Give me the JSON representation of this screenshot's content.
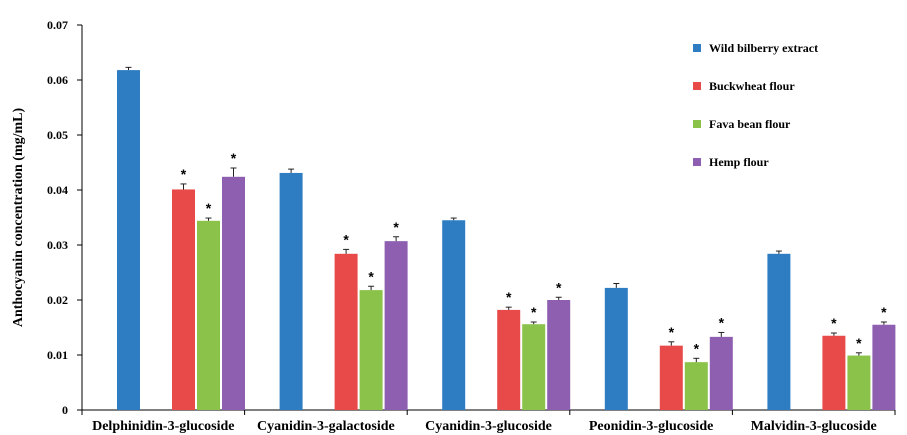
{
  "chart_data": {
    "type": "bar",
    "ylabel": "Anthocyanin concentration (mg/mL)",
    "ylim": [
      0,
      0.07
    ],
    "yticks": [
      "0",
      "0.01",
      "0.02",
      "0.03",
      "0.04",
      "0.05",
      "0.06",
      "0.07"
    ],
    "grid": false,
    "legend_position": "top-right",
    "categories": [
      "Delphinidin-3-glucoside",
      "Cyanidin-3-galactoside",
      "Cyanidin-3-glucoside",
      "Peonidin-3-glucoside",
      "Malvidin-3-glucoside"
    ],
    "significance_marker": "*",
    "series": [
      {
        "name": "Wild bilberry extract",
        "color": "#2e7dc2",
        "values": [
          0.0618,
          0.0431,
          0.0345,
          0.0222,
          0.0284
        ],
        "errors": [
          0.0005,
          0.0007,
          0.0004,
          0.0008,
          0.0005
        ],
        "significant": [
          false,
          false,
          false,
          false,
          false
        ]
      },
      {
        "name": "Buckwheat flour",
        "color": "#e84a4a",
        "values": [
          0.0401,
          0.0284,
          0.0182,
          0.0117,
          0.0135
        ],
        "errors": [
          0.001,
          0.0008,
          0.0005,
          0.0007,
          0.0005
        ],
        "significant": [
          true,
          true,
          true,
          true,
          true
        ]
      },
      {
        "name": "Fava bean flour",
        "color": "#8bc34a",
        "values": [
          0.0344,
          0.0218,
          0.0156,
          0.0087,
          0.0099
        ],
        "errors": [
          0.0005,
          0.0007,
          0.0004,
          0.0007,
          0.0005
        ],
        "significant": [
          true,
          true,
          true,
          true,
          true
        ]
      },
      {
        "name": "Hemp flour",
        "color": "#8e5fb0",
        "values": [
          0.0424,
          0.0307,
          0.02,
          0.0133,
          0.0155
        ],
        "errors": [
          0.0016,
          0.0008,
          0.0005,
          0.0008,
          0.0005
        ],
        "significant": [
          true,
          true,
          true,
          true,
          true
        ]
      }
    ]
  }
}
